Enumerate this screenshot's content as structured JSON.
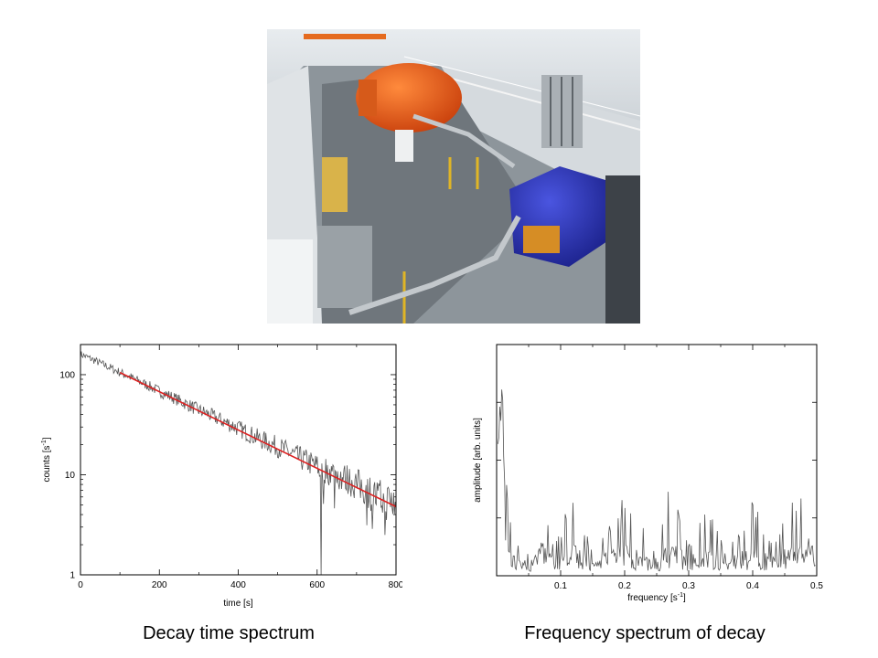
{
  "captions": {
    "left": "Decay time spectrum",
    "right": "Frequency spectrum of decay"
  },
  "chart_data": [
    {
      "type": "line",
      "xlabel": "time [s]",
      "ylabel": "counts [s-1]",
      "yscale": "log",
      "xlim": [
        0,
        800
      ],
      "ylim": [
        1,
        200
      ],
      "x_ticks": [
        "0",
        "200",
        "400",
        "600",
        "800"
      ],
      "y_ticks": [
        "1",
        "10",
        "100"
      ],
      "series": [
        {
          "style": "noisy-histogram",
          "color": "#555555",
          "x": [
            0,
            50,
            100,
            150,
            200,
            250,
            300,
            350,
            400,
            450,
            500,
            550,
            600,
            650,
            700,
            750,
            800
          ],
          "values": [
            160,
            130,
            105,
            85,
            68,
            55,
            44,
            36,
            29,
            23,
            19,
            15,
            12,
            10,
            8,
            6,
            5
          ]
        },
        {
          "style": "fit",
          "color": "#dd2222",
          "x": [
            100,
            800
          ],
          "values": [
            105,
            4.8
          ]
        }
      ]
    },
    {
      "type": "line",
      "xlabel": "frequency [s-1]",
      "ylabel": "amplitude [arb. units]",
      "xlim": [
        0,
        0.5
      ],
      "ylim": [
        0,
        1
      ],
      "x_ticks": [
        "0.1",
        "0.2",
        "0.3",
        "0.4",
        "0.5"
      ],
      "series": [
        {
          "color": "#555555",
          "x": [
            0.005,
            0.008,
            0.012,
            0.02,
            0.03,
            0.05,
            0.067,
            0.09,
            0.12,
            0.15,
            0.2,
            0.25,
            0.272,
            0.3,
            0.33,
            0.36,
            0.4,
            0.43,
            0.465,
            0.49,
            0.5
          ],
          "values": [
            0.95,
            1.0,
            0.55,
            0.25,
            0.15,
            0.12,
            0.45,
            0.12,
            0.38,
            0.1,
            0.35,
            0.12,
            0.42,
            0.15,
            0.3,
            0.1,
            0.33,
            0.15,
            0.35,
            0.5,
            0.05
          ]
        }
      ]
    }
  ]
}
